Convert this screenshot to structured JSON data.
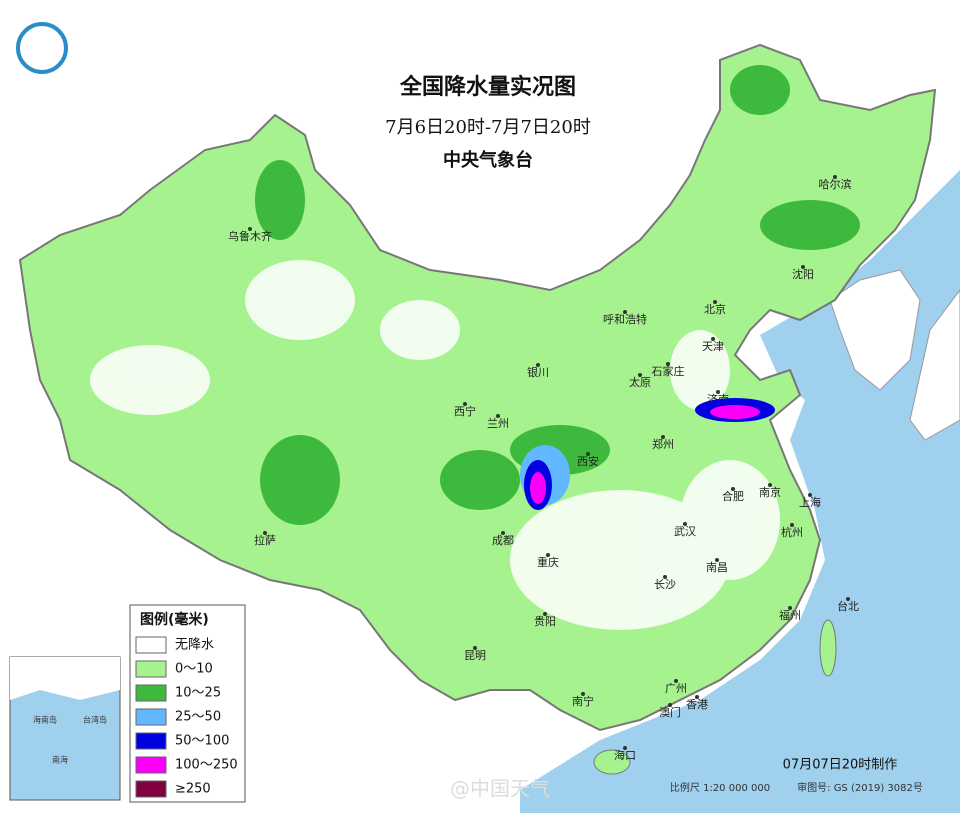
{
  "header": {
    "title": "全国降水量实况图",
    "subtitle": "7月6日20时-7月7日20时",
    "agency": "中央气象台"
  },
  "legend": {
    "title": "图例(毫米)",
    "items": [
      {
        "label": "无降水",
        "color": "#ffffff"
      },
      {
        "label": "0～10",
        "color": "#a6f28f"
      },
      {
        "label": "10～25",
        "color": "#3dba3d"
      },
      {
        "label": "25～50",
        "color": "#61b8ff"
      },
      {
        "label": "50～100",
        "color": "#0000e1"
      },
      {
        "label": "100～250",
        "color": "#fa00fa"
      },
      {
        "label": "≥250",
        "color": "#800040"
      }
    ]
  },
  "cities": [
    "乌鲁木齐",
    "哈尔滨",
    "沈阳",
    "北京",
    "呼和浩特",
    "天津",
    "石家庄",
    "太原",
    "银川",
    "济南",
    "西宁",
    "兰州",
    "郑州",
    "西安",
    "合肥",
    "南京",
    "上海",
    "拉萨",
    "成都",
    "武汉",
    "杭州",
    "重庆",
    "南昌",
    "长沙",
    "台北",
    "福州",
    "贵阳",
    "昆明",
    "广州",
    "南宁",
    "澳门",
    "香港",
    "海口"
  ],
  "inset": {
    "labels": [
      "海南岛",
      "台湾岛",
      "南海"
    ]
  },
  "footer": {
    "made": "07月07日20时制作",
    "scale": "比例尺 1:20 000 000",
    "approval": "审图号: GS (2019) 3082号",
    "watermark": "@中国天气"
  }
}
